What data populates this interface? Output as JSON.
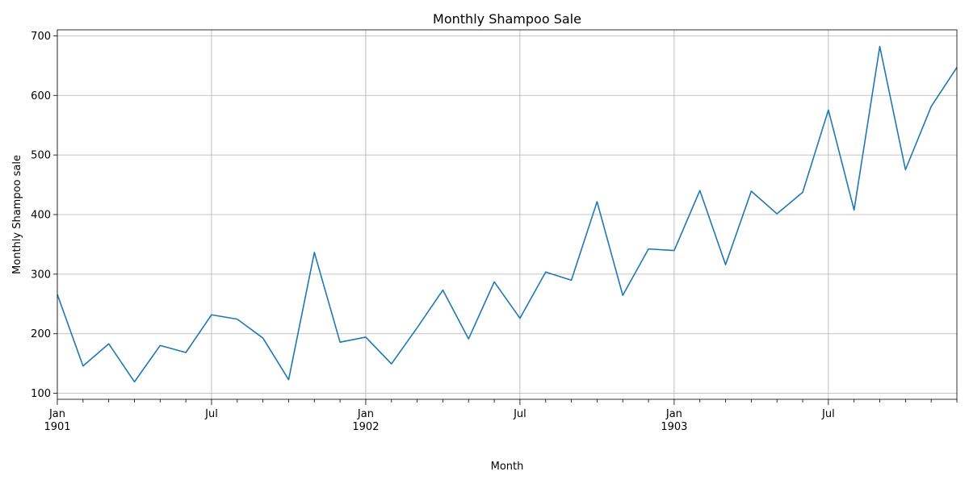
{
  "chart_data": {
    "type": "line",
    "title": "Monthly Shampoo Sale",
    "xlabel": "Month",
    "ylabel": "Monthly Shampoo sale",
    "x": [
      "1901-01",
      "1901-02",
      "1901-03",
      "1901-04",
      "1901-05",
      "1901-06",
      "1901-07",
      "1901-08",
      "1901-09",
      "1901-10",
      "1901-11",
      "1901-12",
      "1902-01",
      "1902-02",
      "1902-03",
      "1902-04",
      "1902-05",
      "1902-06",
      "1902-07",
      "1902-08",
      "1902-09",
      "1902-10",
      "1902-11",
      "1902-12",
      "1903-01",
      "1903-02",
      "1903-03",
      "1903-04",
      "1903-05",
      "1903-06",
      "1903-07",
      "1903-08",
      "1903-09",
      "1903-10",
      "1903-11",
      "1903-12"
    ],
    "series": [
      {
        "values": [
          266.0,
          145.9,
          183.1,
          119.3,
          180.3,
          168.5,
          231.8,
          224.5,
          192.8,
          122.9,
          336.5,
          185.9,
          194.3,
          149.5,
          210.1,
          273.3,
          191.4,
          287.0,
          226.0,
          303.6,
          289.9,
          421.6,
          264.5,
          342.3,
          339.7,
          440.4,
          315.9,
          439.3,
          401.3,
          437.4,
          575.5,
          407.6,
          682.0,
          475.3,
          581.3,
          646.9
        ],
        "color": "#1f77b4"
      }
    ],
    "xlim": [
      "1901-01",
      "1903-12"
    ],
    "ylim": [
      90,
      710
    ],
    "y_ticks": [
      100,
      200,
      300,
      400,
      500,
      600,
      700
    ],
    "x_major_ticks": [
      {
        "date": "1901-01",
        "label": "Jan",
        "sublabel": "1901"
      },
      {
        "date": "1901-07",
        "label": "Jul",
        "sublabel": ""
      },
      {
        "date": "1902-01",
        "label": "Jan",
        "sublabel": "1902"
      },
      {
        "date": "1902-07",
        "label": "Jul",
        "sublabel": ""
      },
      {
        "date": "1903-01",
        "label": "Jan",
        "sublabel": "1903"
      },
      {
        "date": "1903-07",
        "label": "Jul",
        "sublabel": ""
      }
    ],
    "grid": true
  }
}
